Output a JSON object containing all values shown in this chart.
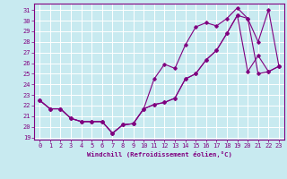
{
  "xlabel": "Windchill (Refroidissement éolien,°C)",
  "bg_color": "#c8eaf0",
  "line_color": "#800080",
  "grid_color": "#ffffff",
  "xlim": [
    -0.5,
    23.5
  ],
  "ylim": [
    18.8,
    31.6
  ],
  "yticks": [
    19,
    20,
    21,
    22,
    23,
    24,
    25,
    26,
    27,
    28,
    29,
    30,
    31
  ],
  "xticks": [
    0,
    1,
    2,
    3,
    4,
    5,
    6,
    7,
    8,
    9,
    10,
    11,
    12,
    13,
    14,
    15,
    16,
    17,
    18,
    19,
    20,
    21,
    22,
    23
  ],
  "series1_x": [
    0,
    1,
    2,
    3,
    4,
    5,
    6,
    7,
    8,
    9,
    10,
    11,
    12,
    13,
    14,
    15,
    16,
    17,
    18,
    19,
    20,
    21,
    22,
    23
  ],
  "series1_y": [
    22.5,
    21.7,
    21.7,
    20.8,
    20.5,
    20.5,
    20.5,
    19.4,
    20.2,
    20.3,
    21.7,
    24.5,
    25.9,
    25.5,
    27.7,
    29.4,
    29.8,
    29.5,
    30.2,
    31.2,
    30.2,
    28.0,
    31.0,
    25.7
  ],
  "series2_x": [
    0,
    1,
    2,
    3,
    4,
    5,
    6,
    7,
    8,
    9,
    10,
    11,
    12,
    13,
    14,
    15,
    16,
    17,
    18,
    19,
    20,
    21,
    22,
    23
  ],
  "series2_y": [
    22.5,
    21.7,
    21.7,
    20.8,
    20.5,
    20.5,
    20.5,
    19.4,
    20.2,
    20.3,
    21.7,
    22.1,
    22.3,
    22.7,
    24.5,
    25.0,
    26.3,
    27.2,
    28.8,
    30.5,
    30.2,
    25.0,
    25.2,
    25.7
  ],
  "series3_x": [
    0,
    1,
    2,
    3,
    4,
    5,
    6,
    7,
    8,
    9,
    10,
    11,
    12,
    13,
    14,
    15,
    16,
    17,
    18,
    19,
    20,
    21,
    22,
    23
  ],
  "series3_y": [
    22.5,
    21.7,
    21.7,
    20.8,
    20.5,
    20.5,
    20.5,
    19.4,
    20.2,
    20.3,
    21.7,
    22.1,
    22.3,
    22.7,
    24.5,
    25.0,
    26.3,
    27.2,
    28.8,
    30.5,
    25.2,
    26.7,
    25.2,
    25.7
  ]
}
